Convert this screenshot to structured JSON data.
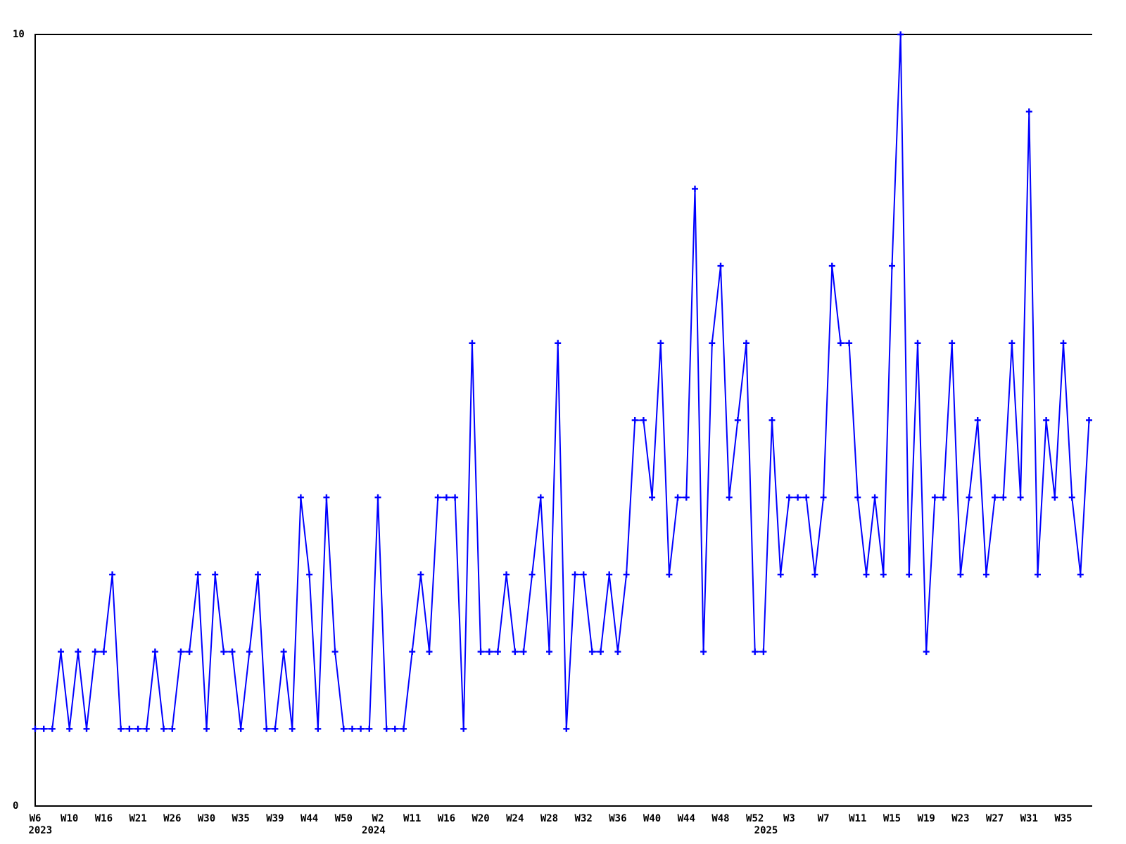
{
  "page": {
    "background": "#ffffff"
  },
  "chart_data": {
    "type": "line",
    "title": "",
    "xlabel": "",
    "ylabel": "",
    "ylim": [
      0,
      10
    ],
    "y_tick_labels": [
      "0",
      "10"
    ],
    "grid": "off",
    "legend": "none",
    "series_color": "#0000ff",
    "axis_color": "#000000",
    "marker": "plus",
    "x_tick_every": 4,
    "x_tick_labels": [
      "W6",
      "W10",
      "W16",
      "W21",
      "W26",
      "W30",
      "W35",
      "W39",
      "W44",
      "W50",
      "W2",
      "W11",
      "W16",
      "W20",
      "W24",
      "W28",
      "W32",
      "W36",
      "W40",
      "W44",
      "W48",
      "W52",
      "W3",
      "W7",
      "W11",
      "W15",
      "W19",
      "W23",
      "W27",
      "W31",
      "W35"
    ],
    "year_labels": [
      {
        "text": "2023",
        "at_index": 0.6
      },
      {
        "text": "2024",
        "at_index": 39.5
      },
      {
        "text": "2025",
        "at_index": 85.3
      }
    ],
    "values": [
      1,
      1,
      1,
      2,
      1,
      2,
      1,
      2,
      2,
      3,
      1,
      1,
      1,
      1,
      2,
      1,
      1,
      2,
      2,
      3,
      1,
      3,
      2,
      2,
      1,
      2,
      3,
      1,
      1,
      2,
      1,
      4,
      3,
      1,
      4,
      2,
      1,
      1,
      1,
      1,
      4,
      1,
      1,
      1,
      2,
      3,
      2,
      4,
      4,
      4,
      1,
      6,
      2,
      2,
      2,
      3,
      2,
      2,
      3,
      4,
      2,
      6,
      1,
      3,
      3,
      2,
      2,
      3,
      2,
      3,
      5,
      5,
      4,
      6,
      3,
      4,
      4,
      8,
      2,
      6,
      7,
      4,
      5,
      6,
      2,
      2,
      5,
      3,
      4,
      4,
      4,
      3,
      4,
      7,
      6,
      6,
      4,
      3,
      4,
      3,
      7,
      10,
      3,
      6,
      2,
      4,
      4,
      6,
      3,
      4,
      5,
      3,
      4,
      4,
      6,
      4,
      9,
      3,
      5,
      4,
      6,
      4,
      3,
      5
    ]
  }
}
